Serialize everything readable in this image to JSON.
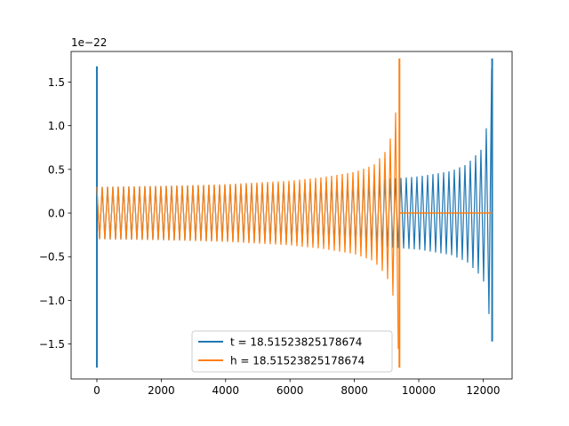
{
  "chart_data": {
    "type": "line",
    "offset_text": "1e−22",
    "xlim": [
      -800,
      12900
    ],
    "ylim": [
      -1.9,
      1.85
    ],
    "x_ticks": [
      0,
      2000,
      4000,
      6000,
      8000,
      10000,
      12000
    ],
    "x_tick_labels": [
      "0",
      "2000",
      "4000",
      "6000",
      "8000",
      "10000",
      "12000"
    ],
    "y_ticks": [
      -1.5,
      -1.0,
      -0.5,
      0.0,
      0.5,
      1.0,
      1.5
    ],
    "y_tick_labels": [
      "−1.5",
      "−1.0",
      "−0.5",
      "0.0",
      "0.5",
      "1.0",
      "1.5"
    ],
    "grid": false,
    "legend_position": "lower center",
    "series": [
      {
        "name": "t = 18.51523825178674",
        "color": "#1f77b4",
        "pattern": "oscillating chirp",
        "x_start": 0,
        "x_end": 12280,
        "start_spike": {
          "x": 0,
          "max": 1.68,
          "min": -1.77
        },
        "envelope_x": [
          200,
          2000,
          4000,
          6000,
          8000,
          9000,
          10000,
          11000,
          11500,
          12000,
          12200,
          12280
        ],
        "envelope_amp": [
          0.3,
          0.31,
          0.32,
          0.34,
          0.37,
          0.39,
          0.42,
          0.48,
          0.56,
          0.75,
          1.2,
          1.77
        ],
        "end_min": -1.47
      },
      {
        "name": "h = 18.51523825178674",
        "color": "#ff7f0e",
        "pattern": "oscillating chirp",
        "x_start": 0,
        "x_end": 9400,
        "envelope_x": [
          100,
          2000,
          4000,
          6000,
          7000,
          8000,
          8600,
          9000,
          9200,
          9300,
          9350,
          9390
        ],
        "envelope_amp": [
          0.3,
          0.31,
          0.33,
          0.37,
          0.41,
          0.47,
          0.55,
          0.72,
          0.95,
          1.2,
          1.45,
          1.77
        ],
        "flat_after_x": [
          9400,
          12280
        ],
        "flat_value": 0.0
      }
    ]
  }
}
